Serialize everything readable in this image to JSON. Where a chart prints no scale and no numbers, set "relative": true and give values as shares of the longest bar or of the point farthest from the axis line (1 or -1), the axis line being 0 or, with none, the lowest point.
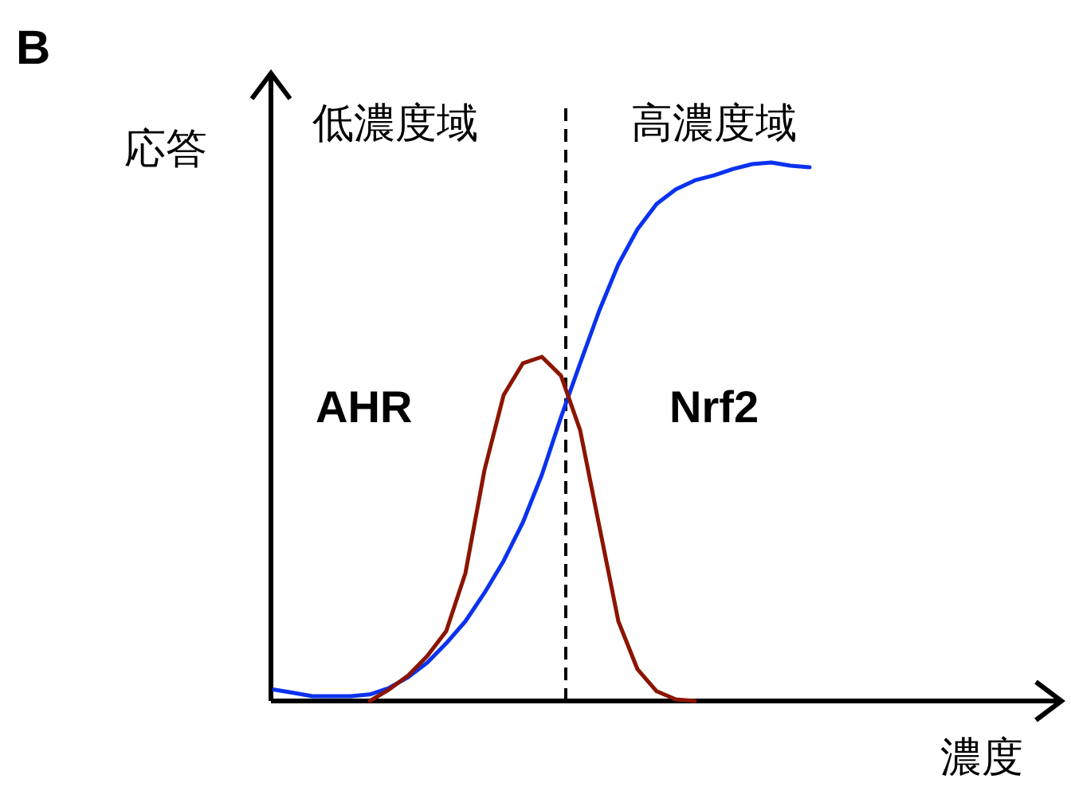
{
  "chart_data": {
    "type": "line",
    "title": "B",
    "xlabel": "濃度",
    "ylabel": "応答",
    "relative": true,
    "categories": [
      null,
      null,
      null,
      null,
      null,
      null,
      null,
      null,
      null,
      null,
      null,
      null,
      null,
      null,
      null,
      null,
      null,
      null,
      null,
      null,
      null,
      null,
      null,
      null,
      null,
      null,
      null,
      null,
      null
    ],
    "series": [
      {
        "color": "#0a32f0",
        "values": [
          0.021,
          0.015,
          0.009,
          0.009,
          0.009,
          0.012,
          0.024,
          0.044,
          0.071,
          0.107,
          0.148,
          0.201,
          0.26,
          0.331,
          0.42,
          0.527,
          0.627,
          0.725,
          0.811,
          0.876,
          0.923,
          0.95,
          0.967,
          0.976,
          0.988,
          0.997,
          1.0,
          0.994,
          0.991
        ]
      },
      {
        "color": "#8b1500",
        "values": [
          null,
          null,
          null,
          null,
          null,
          0.0,
          0.021,
          0.047,
          0.083,
          0.13,
          0.237,
          0.429,
          0.568,
          0.627,
          0.639,
          0.604,
          0.503,
          0.325,
          0.148,
          0.059,
          0.018,
          0.003,
          0.0,
          null,
          null,
          null,
          null,
          null,
          null
        ]
      }
    ],
    "annotations": [
      "低濃度域",
      "高濃度域",
      "AHR",
      "Nrf2"
    ]
  }
}
